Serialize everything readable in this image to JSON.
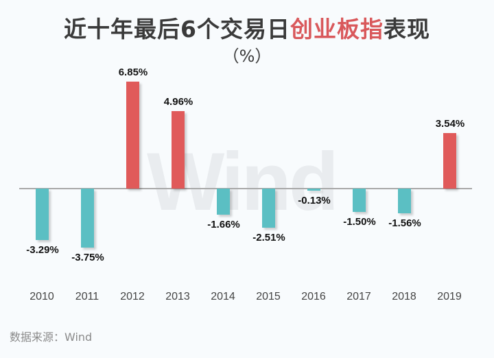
{
  "chart_data": {
    "type": "bar",
    "title": "近十年最后6个交易日创业板指表现",
    "title_parts": [
      {
        "text": "近十年最后6个交易日",
        "highlight": false
      },
      {
        "text": "创业板指",
        "highlight": true
      },
      {
        "text": "表现",
        "highlight": false
      }
    ],
    "subtitle": "（%）",
    "categories": [
      "2010",
      "2011",
      "2012",
      "2013",
      "2014",
      "2015",
      "2016",
      "2017",
      "2018",
      "2019"
    ],
    "values": [
      -3.29,
      -3.75,
      6.85,
      4.96,
      -1.66,
      -2.51,
      -0.13,
      -1.5,
      -1.56,
      3.54
    ],
    "labels": [
      "-3.29%",
      "-3.75%",
      "6.85%",
      "4.96%",
      "-1.66%",
      "-2.51%",
      "-0.13%",
      "-1.50%",
      "-1.56%",
      "3.54%"
    ],
    "xlabel": "",
    "ylabel": "",
    "grid": false,
    "legend": "none",
    "colors": {
      "positive": "#e05a5a",
      "negative": "#5bbfc3"
    }
  },
  "watermark": "Wind",
  "source": "数据来源：Wind"
}
